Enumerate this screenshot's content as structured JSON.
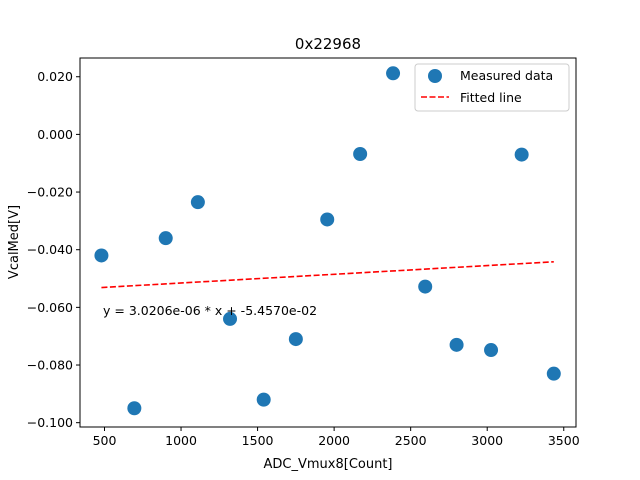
{
  "chart_data": {
    "type": "scatter",
    "title": "0x22968",
    "xlabel": "ADC_Vmux8[Count]",
    "ylabel": "VcalMed[V]",
    "xlim": [
      340,
      3580
    ],
    "ylim": [
      -0.1015,
      0.0265
    ],
    "xticks": [
      500,
      1000,
      1500,
      2000,
      2500,
      3000,
      3500
    ],
    "xtick_labels": [
      "500",
      "1000",
      "1500",
      "2000",
      "2500",
      "3000",
      "3500"
    ],
    "yticks": [
      -0.1,
      -0.08,
      -0.06,
      -0.04,
      -0.02,
      0.0,
      0.02
    ],
    "ytick_labels": [
      "−0.100",
      "−0.080",
      "−0.060",
      "−0.040",
      "−0.020",
      "0.000",
      "0.020"
    ],
    "grid": false,
    "series": [
      {
        "name": "Measured data",
        "kind": "scatter",
        "color": "#1f77b4",
        "x": [
          480,
          695,
          900,
          1110,
          1320,
          1540,
          1750,
          1955,
          2170,
          2385,
          2595,
          2800,
          3025,
          3225,
          3435
        ],
        "y": [
          -0.042,
          -0.095,
          -0.036,
          -0.0235,
          -0.064,
          -0.092,
          -0.071,
          -0.0295,
          -0.0068,
          0.0212,
          -0.0528,
          -0.073,
          -0.0748,
          -0.007,
          -0.083
        ]
      },
      {
        "name": "Fitted line",
        "kind": "line",
        "style": "dashed",
        "color": "#ff0000",
        "x": [
          480,
          3435
        ],
        "y": [
          -0.05312,
          -0.04419
        ]
      }
    ],
    "legend": {
      "location": "top-right",
      "entries": [
        "Measured data",
        "Fitted line"
      ]
    },
    "annotation": "y = 3.0206e-06 * x + -5.4570e-02"
  }
}
